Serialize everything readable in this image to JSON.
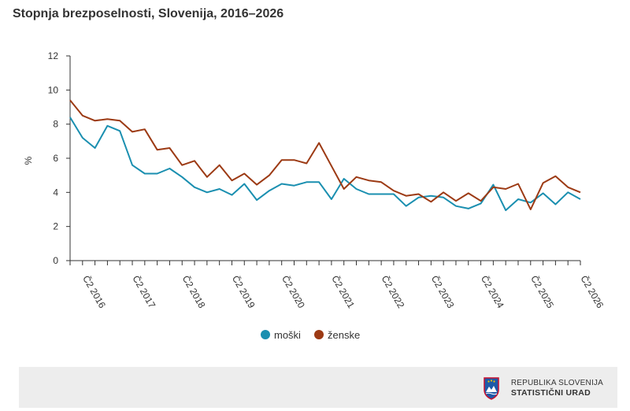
{
  "chart_data": {
    "type": "line",
    "title": "Stopnja brezposelnosti, Slovenija, 2016–2026",
    "ylabel": "%",
    "ylim": [
      0,
      12
    ],
    "yticks": [
      0,
      2,
      4,
      6,
      8,
      10,
      12
    ],
    "x": [
      "Č1 2016",
      "Č2 2016",
      "Č3 2016",
      "Č4 2016",
      "Č1 2017",
      "Č2 2017",
      "Č3 2017",
      "Č4 2017",
      "Č1 2018",
      "Č2 2018",
      "Č3 2018",
      "Č4 2018",
      "Č1 2019",
      "Č2 2019",
      "Č3 2019",
      "Č4 2019",
      "Č1 2020",
      "Č2 2020",
      "Č3 2020",
      "Č4 2020",
      "Č1 2021",
      "Č2 2021",
      "Č3 2021",
      "Č4 2021",
      "Č1 2022",
      "Č2 2022",
      "Č3 2022",
      "Č4 2022",
      "Č1 2023",
      "Č2 2023",
      "Č3 2023",
      "Č4 2023",
      "Č1 2024",
      "Č2 2024",
      "Č3 2024",
      "Č4 2024",
      "Č1 2025",
      "Č2 2025",
      "Č3 2025",
      "Č4 2025",
      "Č1 2026",
      "Č2 2026"
    ],
    "xtick_labels": [
      "Č2 2016",
      "Č2 2017",
      "Č2 2018",
      "Č2 2019",
      "Č2 2020",
      "Č2 2021",
      "Č2 2022",
      "Č2 2023",
      "Č2 2024",
      "Č2 2025",
      "Č2 2026"
    ],
    "grid": false,
    "legend_position": "bottom",
    "series": [
      {
        "name": "moški",
        "color": "#1a8fb0",
        "values": [
          8.4,
          7.2,
          6.6,
          7.9,
          7.6,
          5.6,
          5.1,
          5.1,
          5.4,
          4.9,
          4.3,
          4.0,
          4.2,
          3.85,
          4.5,
          3.55,
          4.1,
          4.5,
          4.4,
          4.6,
          4.6,
          3.6,
          4.8,
          4.2,
          3.9,
          3.9,
          3.9,
          3.2,
          3.7,
          3.8,
          3.7,
          3.2,
          3.05,
          3.35,
          4.45,
          2.95,
          3.6,
          3.4,
          3.95,
          3.3,
          4.0,
          3.6
        ]
      },
      {
        "name": "ženske",
        "color": "#9c3a14",
        "values": [
          9.4,
          8.5,
          8.2,
          8.3,
          8.2,
          7.55,
          7.7,
          6.5,
          6.6,
          5.6,
          5.85,
          4.9,
          5.6,
          4.7,
          5.1,
          4.45,
          5.0,
          5.9,
          5.9,
          5.7,
          6.9,
          5.55,
          4.2,
          4.9,
          4.7,
          4.6,
          4.1,
          3.8,
          3.9,
          3.45,
          4.0,
          3.5,
          3.95,
          3.5,
          4.3,
          4.2,
          4.5,
          3.0,
          4.55,
          4.95,
          4.3,
          4.0
        ]
      }
    ]
  },
  "footer": {
    "logo_line1": "REPUBLIKA SLOVENIJA",
    "logo_line2": "STATISTIČNI URAD",
    "emblem_icon": "coat-of-arms-icon"
  }
}
